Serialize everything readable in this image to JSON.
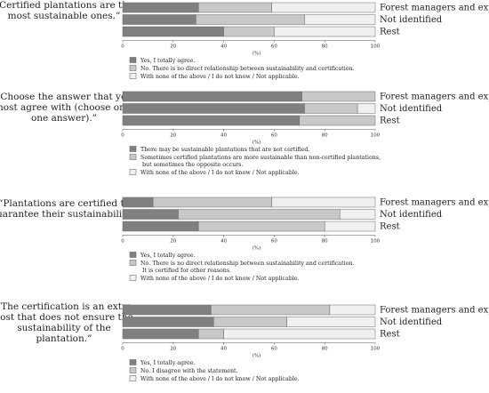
{
  "chart_data": [
    {
      "type": "bar",
      "orientation": "horizontal",
      "stacked": true,
      "question": "“Certified plantations are the most sustainable ones.”",
      "categories": [
        "Forest managers and experts",
        "Not identified",
        "Rest"
      ],
      "series": [
        {
          "name": "Yes, I totally agree.",
          "color": "#808080",
          "values": [
            30,
            29,
            40
          ]
        },
        {
          "name": "No. There is no direct relationship between sustainability and certification.",
          "color": "#c8c8c8",
          "values": [
            29,
            43,
            20
          ]
        },
        {
          "name": "With none of the above / I do not know / Not applicable.",
          "color": "#f0f0f0",
          "values": [
            41,
            28,
            40
          ]
        }
      ],
      "xlim": [
        0,
        100
      ],
      "xticks": [
        "0",
        "20",
        "40",
        "60",
        "80",
        "100"
      ],
      "xlabel": "(%)"
    },
    {
      "type": "bar",
      "orientation": "horizontal",
      "stacked": true,
      "question": "“Choose the answer that you most agree with (choose only one answer).”",
      "categories": [
        "Forest managers and experts",
        "Not identified",
        "Rest"
      ],
      "series": [
        {
          "name": "There may be sustainable plantations that are not certified.",
          "color": "#808080",
          "values": [
            71,
            72,
            70
          ]
        },
        {
          "name": "Sometimes certified plantations are more sustainable than non-certified plantations, but sometimes the opposite occurs.",
          "color": "#c8c8c8",
          "values": [
            29,
            21,
            30
          ]
        },
        {
          "name": "With none of the above / I do not know / Not applicable.",
          "color": "#f0f0f0",
          "values": [
            0,
            7,
            0
          ]
        }
      ],
      "xlim": [
        0,
        100
      ],
      "xticks": [
        "0",
        "20",
        "40",
        "60",
        "80",
        "100"
      ],
      "xlabel": "(%)"
    },
    {
      "type": "bar",
      "orientation": "horizontal",
      "stacked": true,
      "question": "“Plantations are certified to guarantee their sustainability.”",
      "categories": [
        "Forest managers and experts",
        "Not identified",
        "Rest"
      ],
      "series": [
        {
          "name": "Yes, I totally agree.",
          "color": "#808080",
          "values": [
            12,
            22,
            30
          ]
        },
        {
          "name": "No. There is no direct relationship between sustainability and certification. It is certified for other reasons.",
          "color": "#c8c8c8",
          "values": [
            47,
            64,
            50
          ]
        },
        {
          "name": "With none of the above / I do not know / Not applicable.",
          "color": "#f0f0f0",
          "values": [
            41,
            14,
            20
          ]
        }
      ],
      "xlim": [
        0,
        100
      ],
      "xticks": [
        "0",
        "20",
        "40",
        "60",
        "80",
        "100"
      ],
      "xlabel": "(%)"
    },
    {
      "type": "bar",
      "orientation": "horizontal",
      "stacked": true,
      "question": "“The certification is an extra cost that does not ensure the sustainability of the plantation.”",
      "categories": [
        "Forest managers and experts",
        "Not identified",
        "Rest"
      ],
      "series": [
        {
          "name": "Yes, I totally agree.",
          "color": "#808080",
          "values": [
            35,
            36,
            30
          ]
        },
        {
          "name": "No. I disagree with the statement.",
          "color": "#c8c8c8",
          "values": [
            47,
            29,
            10
          ]
        },
        {
          "name": "With none of the above / I do not know / Not applicable.",
          "color": "#f0f0f0",
          "values": [
            18,
            35,
            60
          ]
        }
      ],
      "xlim": [
        0,
        100
      ],
      "xticks": [
        "0",
        "20",
        "40",
        "60",
        "80",
        "100"
      ],
      "xlabel": "(%)"
    }
  ]
}
